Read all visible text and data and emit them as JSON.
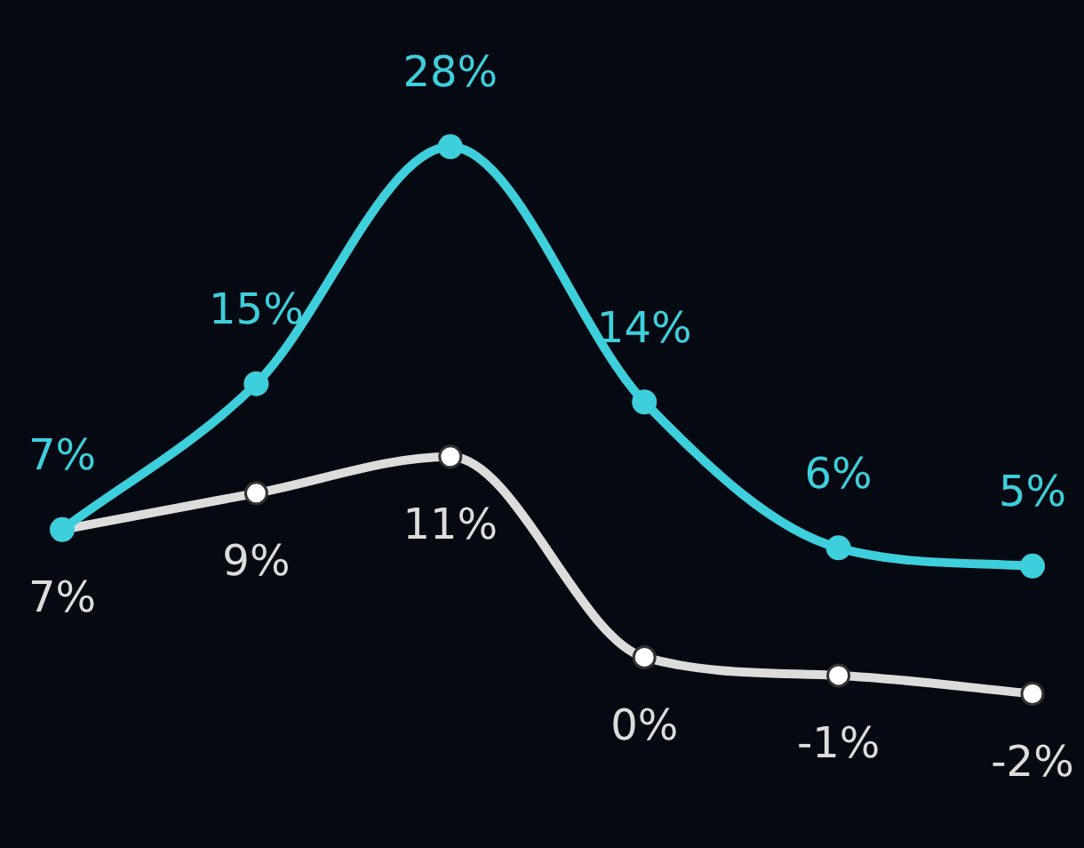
{
  "chart_data": {
    "type": "line",
    "categories": [
      null,
      null,
      null,
      null,
      null,
      null
    ],
    "legend": false,
    "tick_labels": false,
    "marker": "circle",
    "line_style": "solid",
    "series": [
      {
        "color": "#3ecfdc",
        "values": [
          7,
          15,
          28,
          14,
          6,
          5
        ],
        "value_labels": [
          "7%",
          "15%",
          "28%",
          "14%",
          "6%",
          "5%"
        ]
      },
      {
        "color": "#dcdcdc",
        "values": [
          7,
          9,
          11,
          0,
          -1,
          -2
        ],
        "value_labels": [
          "7%",
          "9%",
          "11%",
          "0%",
          "-1%",
          "-2%"
        ]
      }
    ]
  }
}
